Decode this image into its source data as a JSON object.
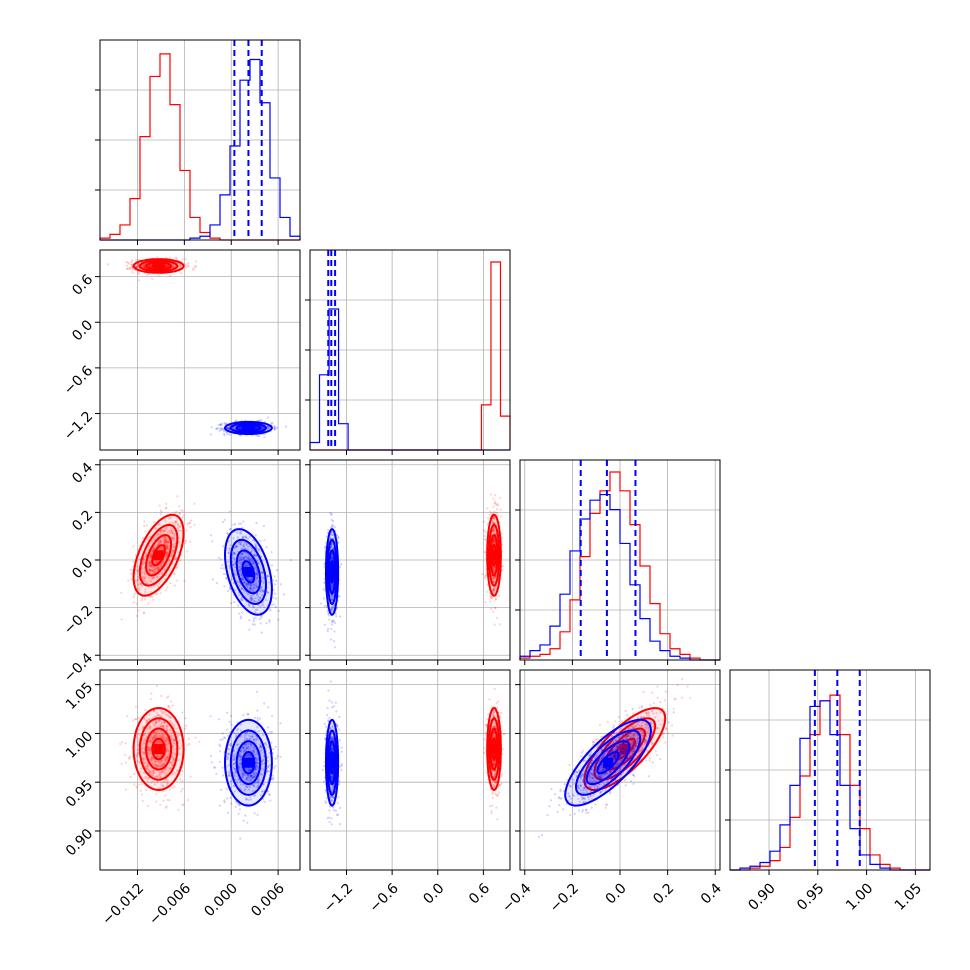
{
  "chart_data": {
    "type": "corner",
    "colors": {
      "series_a": "#ff0000",
      "series_b": "#0000ff",
      "grid": "#b0b0b0"
    },
    "params": [
      {
        "key": "p1",
        "range": [
          -0.0168,
          0.0088
        ],
        "ticks": [
          -0.012,
          -0.006,
          0.0,
          0.006
        ],
        "tick_labels": [
          "−0.012",
          "−0.006",
          "0.000",
          "0.006"
        ]
      },
      {
        "key": "p2",
        "range": [
          -1.68,
          0.95
        ],
        "ticks": [
          -1.2,
          -0.6,
          0.0,
          0.6
        ],
        "tick_labels": [
          "−1.2",
          "−0.6",
          "0.0",
          "0.6"
        ]
      },
      {
        "key": "p3",
        "range": [
          -0.42,
          0.42
        ],
        "ticks": [
          -0.4,
          -0.2,
          0.0,
          0.2,
          0.4
        ],
        "tick_labels": [
          "−0.4",
          "−0.2",
          "0.0",
          "0.2",
          "0.4"
        ]
      },
      {
        "key": "p4",
        "range": [
          0.86,
          1.065
        ],
        "ticks": [
          0.9,
          0.95,
          1.0,
          1.05
        ],
        "tick_labels": [
          "0.90",
          "0.95",
          "1.00",
          "1.05"
        ]
      }
    ],
    "series": [
      {
        "color": "red",
        "means": [
          -0.0093,
          0.74,
          0.02,
          0.984
        ],
        "sds": [
          0.0016,
          0.045,
          0.085,
          0.021
        ]
      },
      {
        "color": "blue",
        "means": [
          0.0022,
          -1.39,
          -0.05,
          0.97
        ],
        "sds": [
          0.0015,
          0.04,
          0.09,
          0.022
        ]
      }
    ],
    "correlations": {
      "p1_p3": {
        "red": 0.55,
        "blue": -0.4
      },
      "p3_p4": {
        "red": 0.75,
        "blue": 0.75
      }
    },
    "quantile_lines": {
      "p1": [
        0.0004,
        0.0022,
        0.0039
      ],
      "p2": [
        -1.44,
        -1.4,
        -1.35
      ],
      "p3": [
        -0.165,
        -0.055,
        0.065
      ],
      "p4": [
        0.947,
        0.97,
        0.993
      ]
    },
    "histograms": [
      {
        "bins": [
          -0.0168,
          0.0088
        ],
        "red": [
          0.01,
          0.03,
          0.08,
          0.22,
          0.55,
          0.87,
          0.99,
          0.72,
          0.37,
          0.12,
          0.04,
          0.01,
          0.0,
          0.0,
          0.0,
          0.0,
          0.0,
          0.0,
          0.0,
          0.0
        ],
        "blue": [
          0.0,
          0.0,
          0.0,
          0.0,
          0.0,
          0.0,
          0.0,
          0.0,
          0.0,
          0.01,
          0.02,
          0.08,
          0.24,
          0.5,
          0.85,
          0.96,
          0.73,
          0.33,
          0.12,
          0.02
        ]
      },
      {
        "bins": [
          -1.68,
          0.95
        ],
        "red": [
          0.0,
          0.0,
          0.0,
          0.0,
          0.0,
          0.0,
          0.0,
          0.0,
          0.0,
          0.0,
          0.0,
          0.0,
          0.0,
          0.0,
          0.0,
          0.0,
          0.0,
          0.0,
          0.24,
          1.0,
          0.18
        ],
        "blue": [
          0.04,
          0.4,
          0.75,
          0.14,
          0.0,
          0.0,
          0.0,
          0.0,
          0.0,
          0.0,
          0.0,
          0.0,
          0.0,
          0.0,
          0.0,
          0.0,
          0.0,
          0.0,
          0.0,
          0.0,
          0.0
        ]
      },
      {
        "bins": [
          -0.42,
          0.42
        ],
        "red": [
          0.01,
          0.02,
          0.03,
          0.06,
          0.15,
          0.32,
          0.55,
          0.78,
          0.9,
          1.0,
          0.9,
          0.72,
          0.5,
          0.3,
          0.14,
          0.06,
          0.03,
          0.01,
          0.0,
          0.0
        ],
        "blue": [
          0.02,
          0.05,
          0.08,
          0.18,
          0.35,
          0.58,
          0.75,
          0.85,
          0.88,
          0.8,
          0.62,
          0.4,
          0.22,
          0.1,
          0.05,
          0.02,
          0.01,
          0.0,
          0.0,
          0.0
        ]
      },
      {
        "bins": [
          0.86,
          1.065
        ],
        "red": [
          0.0,
          0.0,
          0.01,
          0.02,
          0.05,
          0.12,
          0.28,
          0.5,
          0.72,
          0.9,
          0.93,
          0.72,
          0.45,
          0.22,
          0.08,
          0.03,
          0.01,
          0.0,
          0.0,
          0.0
        ],
        "blue": [
          0.0,
          0.01,
          0.02,
          0.04,
          0.1,
          0.24,
          0.45,
          0.7,
          0.87,
          0.9,
          0.72,
          0.45,
          0.22,
          0.08,
          0.03,
          0.01,
          0.0,
          0.0,
          0.0,
          0.0
        ]
      }
    ],
    "grid": true,
    "legend": "none"
  }
}
